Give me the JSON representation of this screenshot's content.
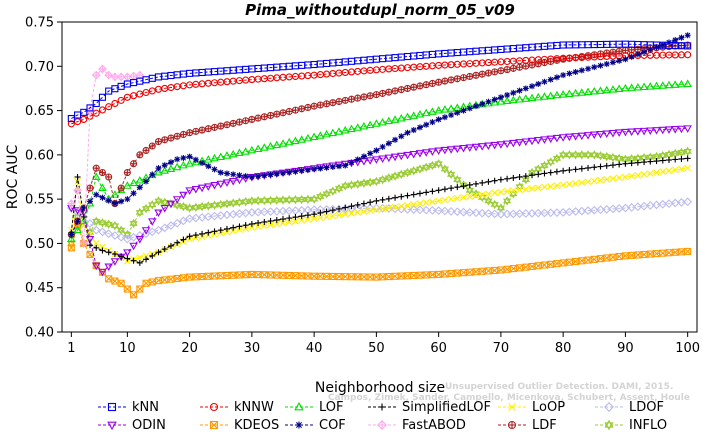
{
  "chart_data": {
    "type": "line",
    "title": "Pima_withoutdupl_norm_05_v09",
    "xlabel": "Neighborhood size",
    "ylabel": "ROC AUC",
    "xlim": [
      1,
      100
    ],
    "ylim": [
      0.4,
      0.75
    ],
    "xticks": [
      1,
      10,
      20,
      30,
      40,
      50,
      60,
      70,
      80,
      90,
      100
    ],
    "yticks": [
      0.4,
      0.45,
      0.5,
      0.55,
      0.6,
      0.65,
      0.7,
      0.75
    ],
    "grid": false,
    "legend_position": "bottom",
    "watermark": [
      "Campos, Zimek, Sander, Campello, Micenkova, Schubert, Assent, Houle",
      "Unsupervised Outlier Detection. DAMI, 2015."
    ],
    "series": [
      {
        "name": "kNN",
        "color": "#0000ee",
        "marker": "square",
        "x": [
          1,
          2,
          3,
          5,
          7,
          10,
          15,
          20,
          30,
          40,
          50,
          60,
          70,
          80,
          90,
          100
        ],
        "values": [
          0.641,
          0.645,
          0.648,
          0.658,
          0.672,
          0.68,
          0.688,
          0.692,
          0.697,
          0.702,
          0.708,
          0.714,
          0.719,
          0.724,
          0.725,
          0.723
        ]
      },
      {
        "name": "kNNW",
        "color": "#ee0000",
        "marker": "circle",
        "x": [
          1,
          3,
          5,
          8,
          10,
          15,
          20,
          30,
          40,
          50,
          60,
          70,
          80,
          90,
          100
        ],
        "values": [
          0.635,
          0.64,
          0.647,
          0.658,
          0.665,
          0.674,
          0.679,
          0.685,
          0.69,
          0.696,
          0.701,
          0.705,
          0.709,
          0.712,
          0.713
        ]
      },
      {
        "name": "LOF",
        "color": "#00dd00",
        "marker": "triangle-up",
        "x": [
          1,
          3,
          4,
          5,
          7,
          10,
          15,
          20,
          30,
          40,
          50,
          60,
          70,
          80,
          90,
          100
        ],
        "values": [
          0.505,
          0.525,
          0.545,
          0.575,
          0.55,
          0.565,
          0.58,
          0.59,
          0.605,
          0.62,
          0.635,
          0.65,
          0.66,
          0.668,
          0.675,
          0.68
        ]
      },
      {
        "name": "SimplifiedLOF",
        "color": "#000000",
        "marker": "plus",
        "x": [
          1,
          2,
          3,
          4,
          6,
          8,
          10,
          12,
          15,
          20,
          30,
          40,
          50,
          60,
          70,
          80,
          90,
          100
        ],
        "values": [
          0.512,
          0.575,
          0.53,
          0.498,
          0.492,
          0.488,
          0.483,
          0.478,
          0.49,
          0.508,
          0.522,
          0.533,
          0.548,
          0.56,
          0.572,
          0.582,
          0.59,
          0.596
        ]
      },
      {
        "name": "LoOP",
        "color": "#ffee00",
        "marker": "x",
        "x": [
          1,
          2,
          3,
          5,
          10,
          15,
          20,
          30,
          40,
          50,
          60,
          70,
          80,
          90,
          100
        ],
        "values": [
          0.515,
          0.57,
          0.52,
          0.5,
          0.48,
          0.49,
          0.505,
          0.518,
          0.528,
          0.538,
          0.548,
          0.558,
          0.566,
          0.575,
          0.585
        ]
      },
      {
        "name": "LDOF",
        "color": "#bbbbee",
        "marker": "diamond",
        "x": [
          1,
          3,
          5,
          10,
          15,
          20,
          30,
          40,
          50,
          60,
          70,
          80,
          90,
          100
        ],
        "values": [
          0.54,
          0.53,
          0.515,
          0.505,
          0.515,
          0.528,
          0.535,
          0.538,
          0.54,
          0.537,
          0.533,
          0.535,
          0.54,
          0.547
        ]
      },
      {
        "name": "ODIN",
        "color": "#9900ee",
        "marker": "triangle-down",
        "x": [
          1,
          3,
          5,
          6,
          8,
          10,
          12,
          15,
          18,
          20,
          30,
          40,
          50,
          60,
          70,
          80,
          90,
          100
        ],
        "values": [
          0.54,
          0.535,
          0.475,
          0.468,
          0.48,
          0.49,
          0.505,
          0.535,
          0.55,
          0.56,
          0.575,
          0.585,
          0.595,
          0.605,
          0.612,
          0.62,
          0.626,
          0.63
        ]
      },
      {
        "name": "KDEOS",
        "color": "#ff9900",
        "marker": "square-x",
        "x": [
          1,
          2,
          3,
          5,
          7,
          9,
          11,
          13,
          15,
          20,
          30,
          40,
          50,
          60,
          70,
          80,
          90,
          100
        ],
        "values": [
          0.495,
          0.52,
          0.5,
          0.475,
          0.46,
          0.455,
          0.442,
          0.455,
          0.458,
          0.462,
          0.465,
          0.463,
          0.462,
          0.465,
          0.47,
          0.478,
          0.486,
          0.491
        ]
      },
      {
        "name": "COF",
        "color": "#000088",
        "marker": "asterisk",
        "x": [
          1,
          3,
          5,
          8,
          10,
          13,
          15,
          18,
          20,
          25,
          30,
          40,
          45,
          50,
          55,
          60,
          70,
          80,
          90,
          100
        ],
        "values": [
          0.51,
          0.54,
          0.555,
          0.545,
          0.55,
          0.57,
          0.585,
          0.595,
          0.598,
          0.58,
          0.575,
          0.584,
          0.588,
          0.605,
          0.625,
          0.64,
          0.665,
          0.69,
          0.708,
          0.735
        ]
      },
      {
        "name": "FastABOD",
        "color": "#ffaaee",
        "marker": "diamond-plus",
        "x": [
          1,
          2,
          3,
          4,
          5,
          6,
          7,
          8,
          10,
          12
        ],
        "values": [
          0.545,
          0.56,
          0.5,
          0.65,
          0.69,
          0.697,
          0.69,
          0.688,
          0.688,
          0.69
        ]
      },
      {
        "name": "LDF",
        "color": "#aa2222",
        "marker": "circle-plus",
        "x": [
          1,
          3,
          5,
          7,
          8,
          10,
          12,
          15,
          20,
          30,
          40,
          50,
          60,
          70,
          80,
          90,
          100
        ],
        "values": [
          0.51,
          0.54,
          0.585,
          0.575,
          0.545,
          0.58,
          0.6,
          0.615,
          0.625,
          0.64,
          0.655,
          0.668,
          0.682,
          0.695,
          0.708,
          0.718,
          0.724
        ]
      },
      {
        "name": "INFLO",
        "color": "#99cc33",
        "marker": "hexagram",
        "x": [
          1,
          2,
          3,
          5,
          8,
          10,
          12,
          15,
          20,
          30,
          40,
          45,
          50,
          55,
          60,
          65,
          70,
          75,
          80,
          85,
          90,
          95,
          100
        ],
        "values": [
          0.5,
          0.53,
          0.5,
          0.525,
          0.52,
          0.51,
          0.535,
          0.548,
          0.54,
          0.548,
          0.55,
          0.565,
          0.57,
          0.58,
          0.59,
          0.56,
          0.54,
          0.58,
          0.6,
          0.6,
          0.595,
          0.598,
          0.604
        ]
      }
    ]
  }
}
